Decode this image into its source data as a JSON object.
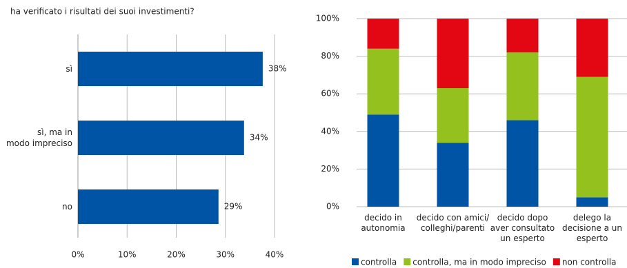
{
  "chart_data": [
    {
      "type": "hbar",
      "title": "ha verificato i risultati dei suoi investimenti?",
      "categories": [
        [
          "sì"
        ],
        [
          "sì, ma in",
          "modo impreciso"
        ],
        [
          "no"
        ]
      ],
      "values": [
        37.6,
        33.8,
        28.6
      ],
      "value_labels": [
        "38%",
        "34%",
        "29%"
      ],
      "color": "#0054a6",
      "xlim": [
        0,
        40
      ],
      "xticks": [
        {
          "value": 0,
          "label": "0%"
        },
        {
          "value": 10,
          "label": "10%"
        },
        {
          "value": 20,
          "label": "20%"
        },
        {
          "value": 30,
          "label": "30%"
        },
        {
          "value": 40,
          "label": "40%"
        }
      ],
      "grid": true
    },
    {
      "type": "stacked_bar",
      "categories": [
        [
          "decido in",
          "autonomia"
        ],
        [
          "decido con amici/",
          "colleghi/parenti"
        ],
        [
          "decido dopo",
          "aver consultato",
          "un esperto"
        ],
        [
          "delego la",
          "decisione a un",
          "esperto"
        ]
      ],
      "series": [
        {
          "name": "controlla",
          "color": "#0054a6",
          "values": [
            49,
            34,
            46,
            5
          ]
        },
        {
          "name": "controlla, ma in modo impreciso",
          "color": "#95c11f",
          "values": [
            35,
            29,
            36,
            64
          ]
        },
        {
          "name": "non controlla",
          "color": "#e30613",
          "values": [
            16,
            37,
            18,
            31
          ]
        }
      ],
      "ylim": [
        0,
        100
      ],
      "yticks": [
        {
          "value": 0,
          "label": "0%"
        },
        {
          "value": 20,
          "label": "20%"
        },
        {
          "value": 40,
          "label": "40%"
        },
        {
          "value": 60,
          "label": "60%"
        },
        {
          "value": 80,
          "label": "80%"
        },
        {
          "value": 100,
          "label": "100%"
        }
      ],
      "grid": true,
      "legend": "bottom"
    }
  ]
}
